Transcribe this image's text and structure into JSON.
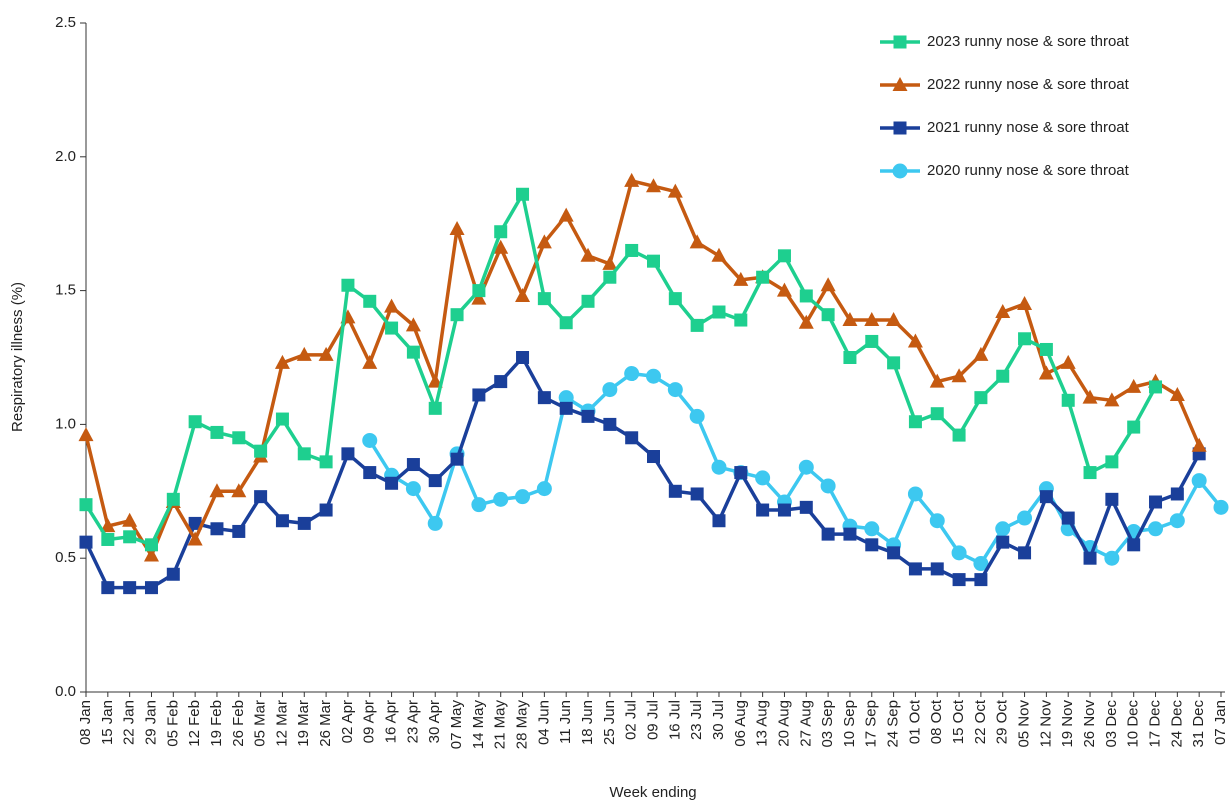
{
  "chart_data": {
    "type": "line",
    "x_label": "Week ending",
    "y_label": "Respiratory illness (%)",
    "categories": [
      "08 Jan",
      "15 Jan",
      "22 Jan",
      "29 Jan",
      "05 Feb",
      "12 Feb",
      "19 Feb",
      "26 Feb",
      "05 Mar",
      "12 Mar",
      "19 Mar",
      "26 Mar",
      "02 Apr",
      "09 Apr",
      "16 Apr",
      "23 Apr",
      "30 Apr",
      "07 May",
      "14 May",
      "21 May",
      "28 May",
      "04 Jun",
      "11 Jun",
      "18 Jun",
      "25 Jun",
      "02 Jul",
      "09 Jul",
      "16 Jul",
      "23 Jul",
      "30 Jul",
      "06 Aug",
      "13 Aug",
      "20 Aug",
      "27 Aug",
      "03 Sep",
      "10 Sep",
      "17 Sep",
      "24 Sep",
      "01 Oct",
      "08 Oct",
      "15 Oct",
      "22 Oct",
      "29 Oct",
      "05 Nov",
      "12 Nov",
      "19 Nov",
      "26 Nov",
      "03 Dec",
      "10 Dec",
      "17 Dec",
      "24 Dec",
      "31 Dec",
      "07 Jan"
    ],
    "ylim": [
      0,
      2.5
    ],
    "yticks": [
      {
        "value": 0,
        "label": "0.0"
      },
      {
        "value": 0.5,
        "label": "0.5"
      },
      {
        "value": 1,
        "label": "1.0"
      },
      {
        "value": 1.5,
        "label": "1.5"
      },
      {
        "value": 2,
        "label": "2.0"
      },
      {
        "value": 2.5,
        "label": "2.5"
      }
    ],
    "legend": "top-right",
    "series": [
      {
        "name": "2023 runny nose & sore throat",
        "color": "#1ecf8f",
        "marker": "square",
        "values": [
          0.7,
          0.57,
          0.58,
          0.55,
          0.72,
          1.01,
          0.97,
          0.95,
          0.9,
          1.02,
          0.89,
          0.86,
          1.52,
          1.46,
          1.36,
          1.27,
          1.06,
          1.41,
          1.5,
          1.72,
          1.86,
          1.47,
          1.38,
          1.46,
          1.55,
          1.65,
          1.61,
          1.47,
          1.37,
          1.42,
          1.39,
          1.55,
          1.63,
          1.48,
          1.41,
          1.25,
          1.31,
          1.23,
          1.01,
          1.04,
          0.96,
          1.1,
          1.18,
          1.32,
          1.28,
          1.09,
          0.82,
          0.86,
          0.99,
          1.14,
          null,
          null,
          null
        ]
      },
      {
        "name": "2022 runny nose & sore throat",
        "color": "#c55a11",
        "marker": "triangle",
        "values": [
          0.96,
          0.62,
          0.64,
          0.51,
          0.71,
          0.57,
          0.75,
          0.75,
          0.88,
          1.23,
          1.26,
          1.26,
          1.4,
          1.23,
          1.44,
          1.37,
          1.16,
          1.73,
          1.47,
          1.66,
          1.48,
          1.68,
          1.78,
          1.63,
          1.6,
          1.91,
          1.89,
          1.87,
          1.68,
          1.63,
          1.54,
          1.55,
          1.5,
          1.38,
          1.52,
          1.39,
          1.39,
          1.39,
          1.31,
          1.16,
          1.18,
          1.26,
          1.42,
          1.45,
          1.19,
          1.23,
          1.1,
          1.09,
          1.14,
          1.16,
          1.11,
          0.92,
          null
        ]
      },
      {
        "name": "2021 runny nose & sore throat",
        "color": "#1a3f9a",
        "marker": "square",
        "values": [
          0.56,
          0.39,
          0.39,
          0.39,
          0.44,
          0.63,
          0.61,
          0.6,
          0.73,
          0.64,
          0.63,
          0.68,
          0.89,
          0.82,
          0.78,
          0.85,
          0.79,
          0.87,
          1.11,
          1.16,
          1.25,
          1.1,
          1.06,
          1.03,
          1.0,
          0.95,
          0.88,
          0.75,
          0.74,
          0.64,
          0.82,
          0.68,
          0.68,
          0.69,
          0.59,
          0.59,
          0.55,
          0.52,
          0.46,
          0.46,
          0.42,
          0.42,
          0.56,
          0.52,
          0.73,
          0.65,
          0.5,
          0.72,
          0.55,
          0.71,
          0.74,
          0.89,
          null
        ]
      },
      {
        "name": "2020 runny nose & sore throat",
        "color": "#3dc8f0",
        "marker": "circle",
        "values": [
          null,
          null,
          null,
          null,
          null,
          null,
          null,
          null,
          null,
          null,
          null,
          null,
          null,
          0.94,
          0.81,
          0.76,
          0.63,
          0.89,
          0.7,
          0.72,
          0.73,
          0.76,
          1.1,
          1.05,
          1.13,
          1.19,
          1.18,
          1.13,
          1.03,
          0.84,
          0.82,
          0.8,
          0.71,
          0.84,
          0.77,
          0.62,
          0.61,
          0.55,
          0.74,
          0.64,
          0.52,
          0.48,
          0.61,
          0.65,
          0.76,
          0.61,
          0.54,
          0.5,
          0.6,
          0.61,
          0.64,
          0.79,
          0.69
        ]
      }
    ]
  }
}
